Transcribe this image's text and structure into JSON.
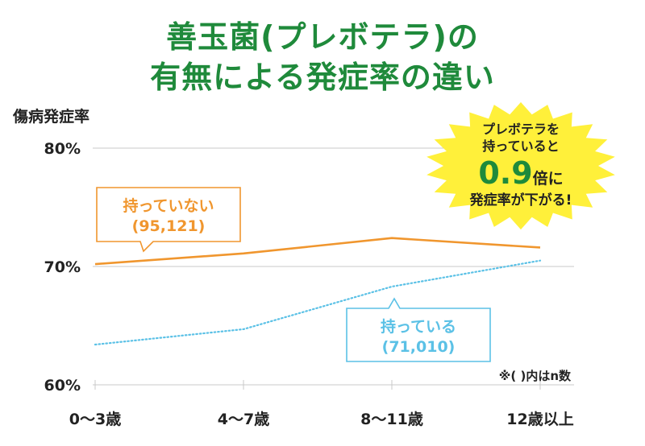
{
  "title_line1": "善玉菌(プレボテラ)の",
  "title_line2": "有無による発症率の違い",
  "ylabel": "傷病発症率",
  "note": "※( )内はn数",
  "badge": {
    "line1": "プレボテラを",
    "line2": "持っていると",
    "big": "0.9",
    "big_suffix": "倍に",
    "line4": "発症率が下がる!",
    "color": "#fff03a"
  },
  "chart_data": {
    "type": "line",
    "categories": [
      "0〜3歳",
      "4〜7歳",
      "8〜11歳",
      "12歳以上"
    ],
    "yticks": [
      "60%",
      "70%",
      "80%"
    ],
    "ylim": [
      60,
      80
    ],
    "series": [
      {
        "name": "持っていない",
        "n": "(95,121)",
        "values": [
          70.2,
          71.1,
          72.4,
          71.6
        ],
        "color": "#f0962e",
        "style": "solid"
      },
      {
        "name": "持っている",
        "n": "(71,010)",
        "values": [
          63.4,
          64.7,
          68.3,
          70.5
        ],
        "color": "#5bc1e6",
        "style": "dotted"
      }
    ]
  }
}
